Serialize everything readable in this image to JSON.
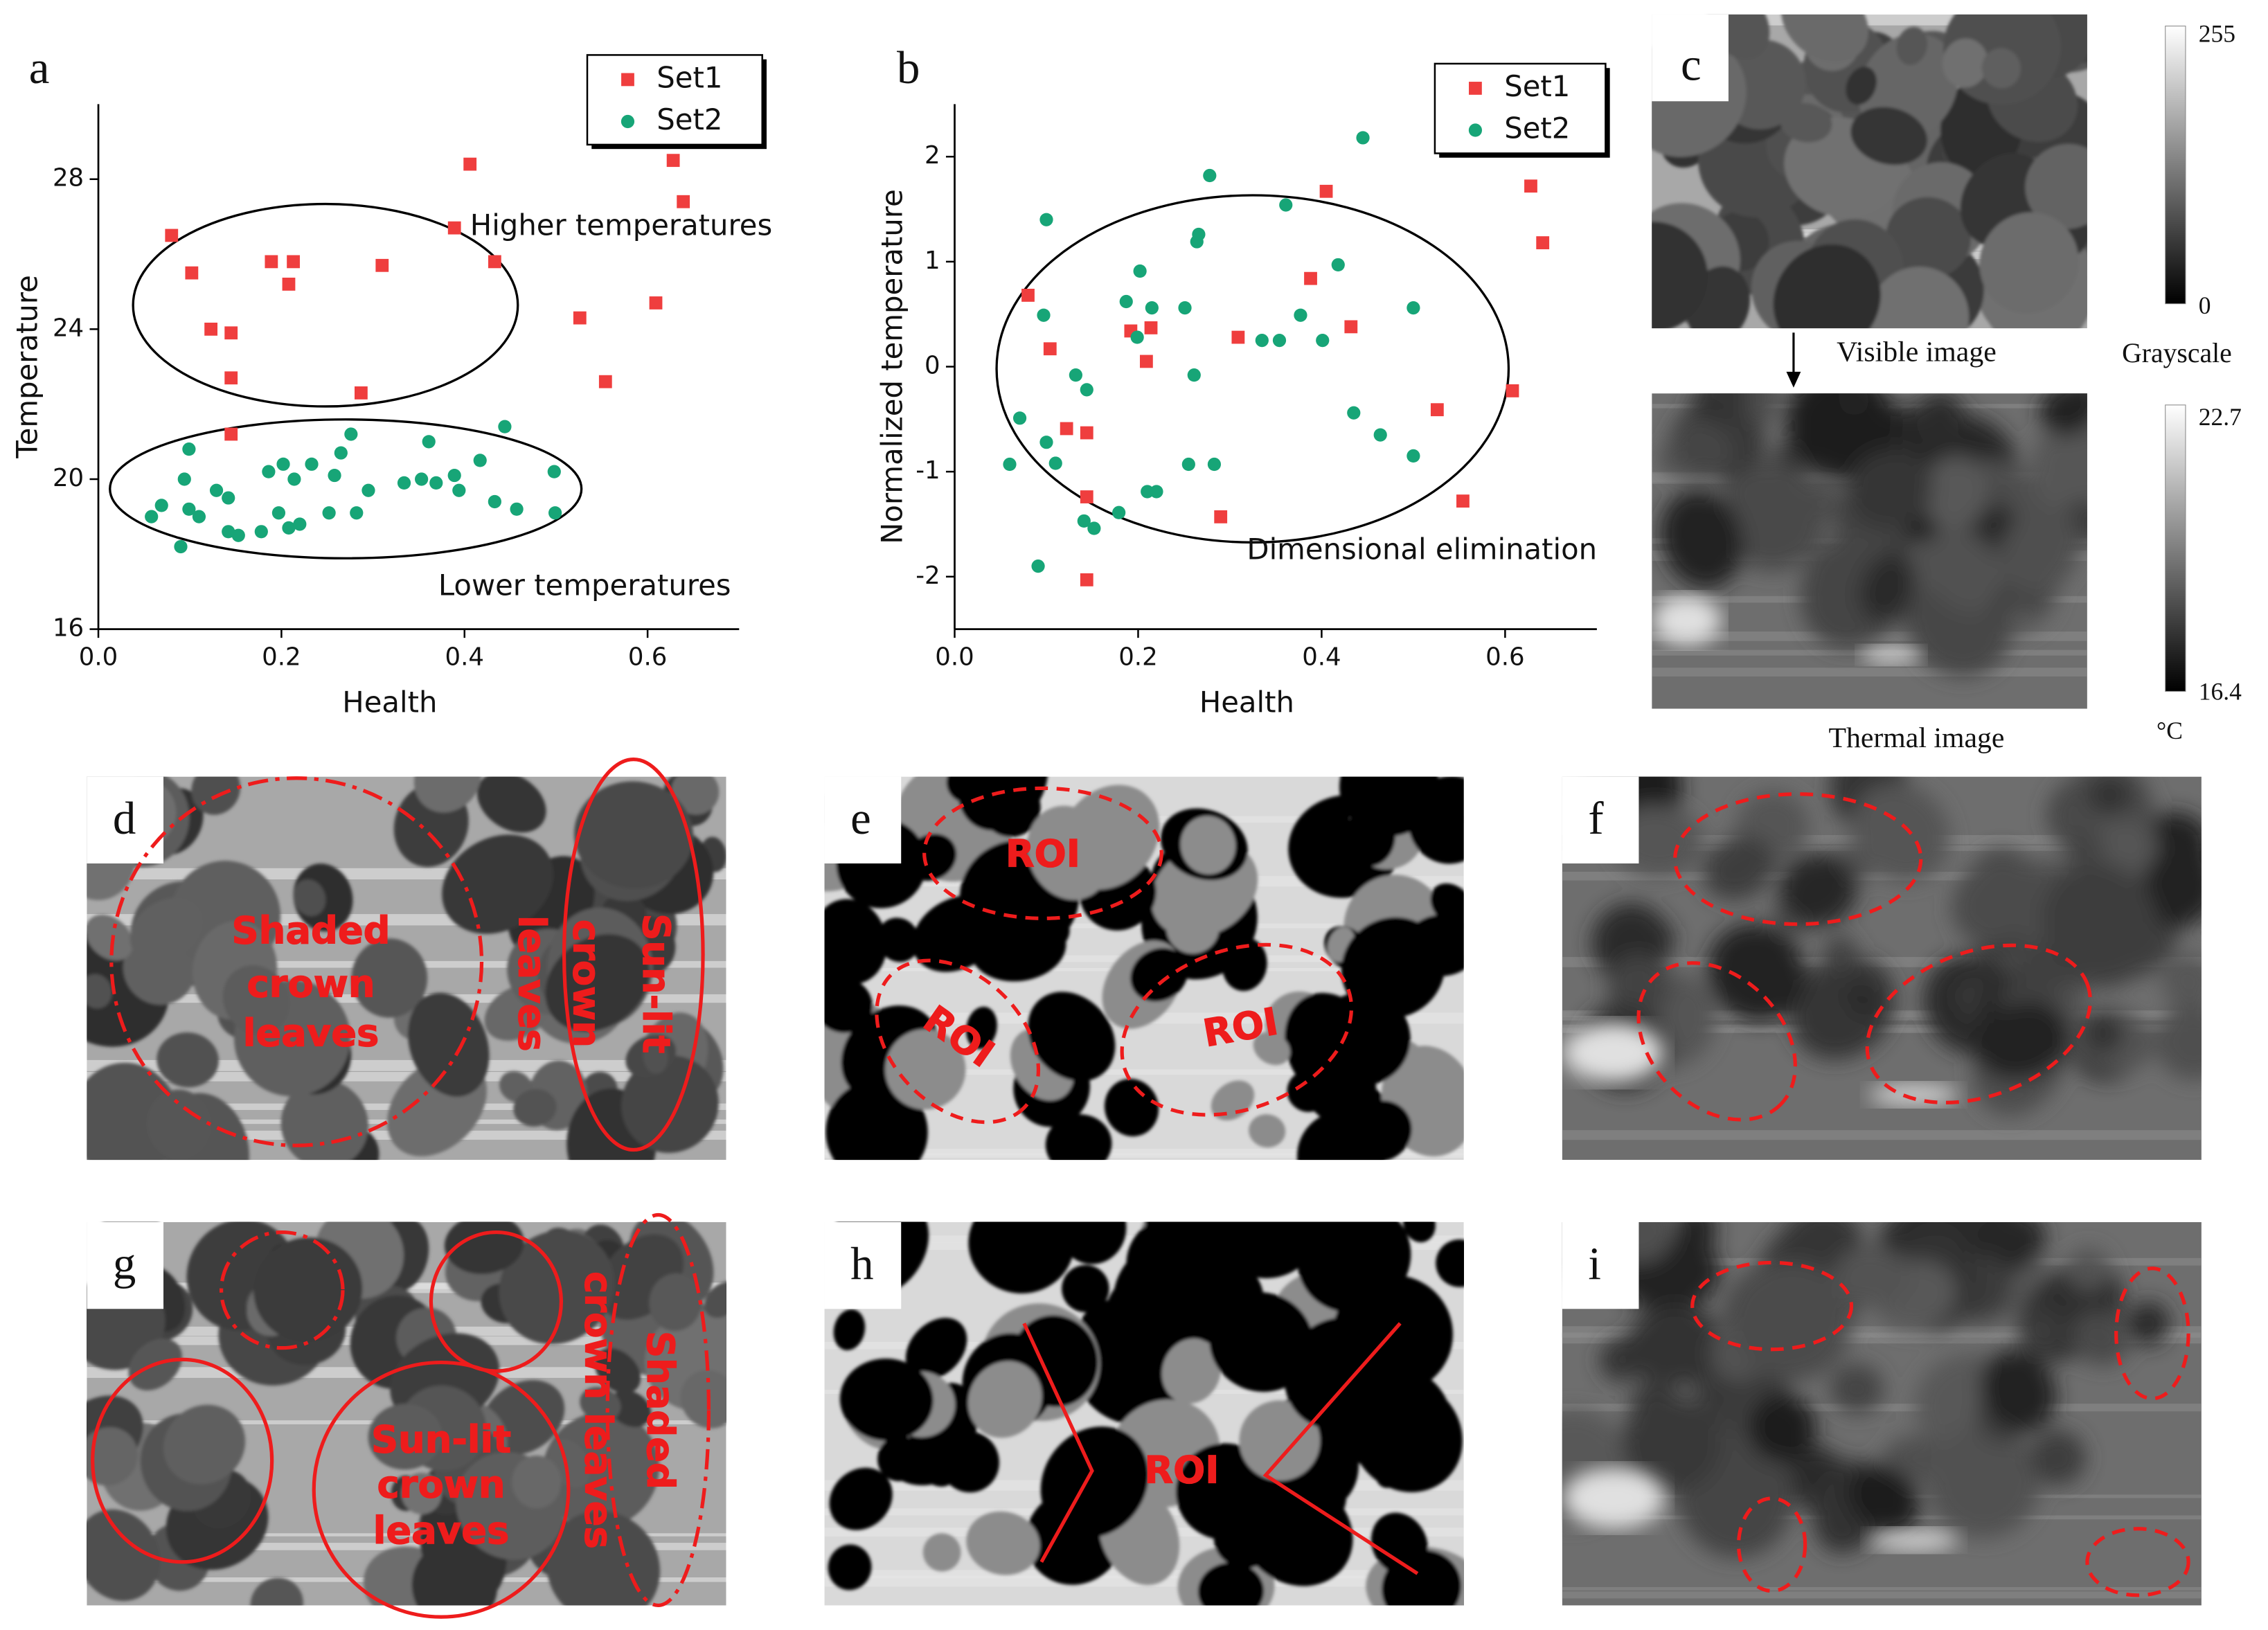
{
  "chart_data": [
    {
      "type": "scatter",
      "panel_label": "a",
      "x_label": "Health",
      "y_label": "Temperature",
      "xlim": [
        0,
        0.7
      ],
      "ylim": [
        16,
        30
      ],
      "xticks": [
        {
          "value": 0,
          "label": "0.0"
        },
        0.2,
        0.4,
        0.6
      ],
      "yticks": [
        16,
        20,
        24,
        28
      ],
      "annotations": [
        "Higher temperatures",
        "Lower temperatures"
      ],
      "series": [
        {
          "name": "Set1",
          "color": "#ef3e3e",
          "marker": "square",
          "x": [
            0.08,
            0.102,
            0.123,
            0.145,
            0.145,
            0.145,
            0.189,
            0.208,
            0.213,
            0.287,
            0.31,
            0.389,
            0.406,
            0.433,
            0.526,
            0.554,
            0.609,
            0.628,
            0.639
          ],
          "values": [
            26.5,
            25.5,
            24.0,
            23.9,
            22.7,
            21.2,
            25.8,
            25.2,
            25.8,
            22.3,
            25.7,
            26.7,
            28.4,
            25.8,
            24.3,
            22.6,
            24.7,
            28.5,
            27.4
          ]
        },
        {
          "name": "Set2",
          "color": "#17a577",
          "marker": "circle",
          "x": [
            0.058,
            0.069,
            0.09,
            0.094,
            0.099,
            0.099,
            0.11,
            0.129,
            0.142,
            0.142,
            0.153,
            0.178,
            0.186,
            0.197,
            0.202,
            0.208,
            0.214,
            0.22,
            0.233,
            0.252,
            0.258,
            0.265,
            0.276,
            0.282,
            0.295,
            0.334,
            0.353,
            0.361,
            0.369,
            0.389,
            0.394,
            0.417,
            0.433,
            0.444,
            0.457,
            0.498,
            0.499
          ],
          "values": [
            19.0,
            19.3,
            18.2,
            20.0,
            20.8,
            19.2,
            19.0,
            19.7,
            19.5,
            18.6,
            18.5,
            18.6,
            20.2,
            19.1,
            20.4,
            18.7,
            20.0,
            18.8,
            20.4,
            19.1,
            20.1,
            20.7,
            21.2,
            19.1,
            19.7,
            19.9,
            20.0,
            21.0,
            19.9,
            20.1,
            19.7,
            20.5,
            19.4,
            21.4,
            19.2,
            20.2,
            19.1
          ]
        }
      ]
    },
    {
      "type": "scatter",
      "panel_label": "b",
      "x_label": "Health",
      "y_label": "Normalized temperature",
      "xlim": [
        0,
        0.7
      ],
      "ylim": [
        -2.5,
        2.5
      ],
      "xticks": [
        {
          "value": 0,
          "label": "0.0"
        },
        0.2,
        0.4,
        0.6
      ],
      "yticks": [
        -2,
        -1,
        0,
        1,
        2
      ],
      "annotations": [
        "Dimensional elimination"
      ],
      "series": [
        {
          "name": "Set1",
          "color": "#ef3e3e",
          "marker": "square",
          "x": [
            0.08,
            0.104,
            0.122,
            0.144,
            0.144,
            0.144,
            0.192,
            0.209,
            0.214,
            0.29,
            0.309,
            0.388,
            0.405,
            0.432,
            0.526,
            0.554,
            0.608,
            0.628,
            0.641
          ],
          "values": [
            0.68,
            0.17,
            -0.59,
            -0.63,
            -1.24,
            -2.03,
            0.34,
            0.05,
            0.37,
            -1.43,
            0.28,
            0.84,
            1.67,
            0.38,
            -0.41,
            -1.28,
            -0.23,
            1.72,
            1.18
          ]
        },
        {
          "name": "Set2",
          "color": "#17a577",
          "marker": "circle",
          "x": [
            0.06,
            0.071,
            0.091,
            0.097,
            0.1,
            0.1,
            0.11,
            0.132,
            0.144,
            0.141,
            0.152,
            0.179,
            0.187,
            0.199,
            0.202,
            0.21,
            0.215,
            0.22,
            0.251,
            0.255,
            0.261,
            0.264,
            0.266,
            0.278,
            0.283,
            0.335,
            0.354,
            0.361,
            0.377,
            0.401,
            0.418,
            0.435,
            0.445,
            0.464,
            0.5,
            0.5
          ],
          "values": [
            -0.93,
            -0.49,
            -1.9,
            0.49,
            1.4,
            -0.72,
            -0.92,
            -0.08,
            -0.22,
            -1.47,
            -1.54,
            -1.39,
            0.62,
            0.28,
            0.91,
            -1.19,
            0.56,
            -1.19,
            0.56,
            -0.93,
            -0.08,
            1.19,
            1.26,
            1.82,
            -0.93,
            0.25,
            0.25,
            1.54,
            0.49,
            0.25,
            0.97,
            -0.44,
            2.18,
            -0.65,
            0.56,
            -0.85
          ]
        }
      ]
    }
  ],
  "panels": {
    "c": {
      "label": "c",
      "visible_caption": "Visible image",
      "thermal_caption": "Thermal image",
      "grayscale_title": "Grayscale",
      "grayscale_ticks": [
        255,
        0
      ],
      "thermal_ticks": [
        22.7,
        16.4
      ],
      "thermal_unit": "°C"
    },
    "d": {
      "label": "d",
      "annotations": [
        [
          "Shaded",
          "crown",
          "leaves"
        ],
        [
          "Sun-lit",
          "crown",
          "leaves"
        ]
      ]
    },
    "e": {
      "label": "e",
      "annotations": [
        "ROI",
        "ROI",
        "ROI"
      ]
    },
    "f": {
      "label": "f"
    },
    "g": {
      "label": "g",
      "annotations": [
        [
          "Sun-lit",
          "crown",
          "leaves"
        ],
        [
          "Shaded",
          "crown leaves"
        ]
      ]
    },
    "h": {
      "label": "h",
      "annotations": [
        "ROI"
      ]
    },
    "i": {
      "label": "i"
    }
  }
}
